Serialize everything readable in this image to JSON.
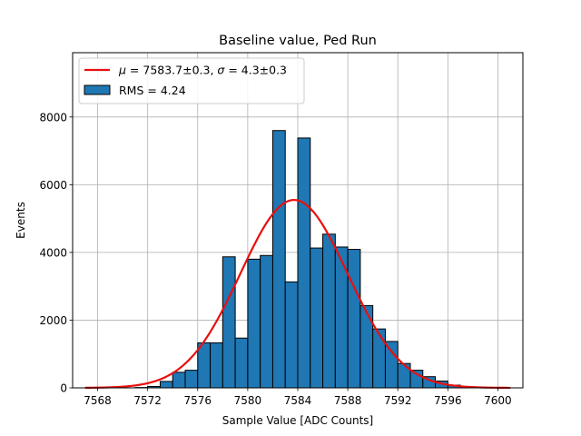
{
  "chart_data": {
    "type": "bar",
    "title": "Baseline value, Ped Run",
    "xlabel": "Sample Value [ADC Counts]",
    "ylabel": "Events",
    "xlim": [
      7566,
      7602
    ],
    "ylim": [
      0,
      9900
    ],
    "xticks": [
      7568,
      7572,
      7576,
      7580,
      7584,
      7588,
      7592,
      7596,
      7600
    ],
    "yticks": [
      0,
      2000,
      4000,
      6000,
      8000
    ],
    "grid": true,
    "legend_position": "top-left",
    "bar_color": "#1f77b4",
    "fit_color": "#e8100f",
    "bins": {
      "left_edges": [
        7571,
        7572,
        7573,
        7574,
        7575,
        7576,
        7577,
        7578,
        7579,
        7580,
        7581,
        7582,
        7583,
        7584,
        7585,
        7586,
        7587,
        7588,
        7589,
        7590,
        7591,
        7592,
        7593,
        7594,
        7595,
        7596
      ],
      "width": 1,
      "counts": [
        10,
        40,
        190,
        460,
        520,
        1330,
        1330,
        3870,
        1470,
        3800,
        3910,
        7600,
        3130,
        7380,
        4130,
        4540,
        4160,
        4090,
        2430,
        1740,
        1370,
        720,
        520,
        330,
        200,
        80
      ]
    },
    "fit": {
      "type": "gaussian",
      "mu": 7583.7,
      "sigma": 4.3,
      "amplitude": 5550,
      "x_range": [
        7567,
        7601
      ]
    },
    "legend": {
      "fit_label_mu": "μ",
      "fit_label_mid": " = 7583.7±0.3, ",
      "fit_label_sigma": "σ",
      "fit_label_end": " = 4.3±0.3",
      "hist_label": "RMS = 4.24"
    }
  }
}
